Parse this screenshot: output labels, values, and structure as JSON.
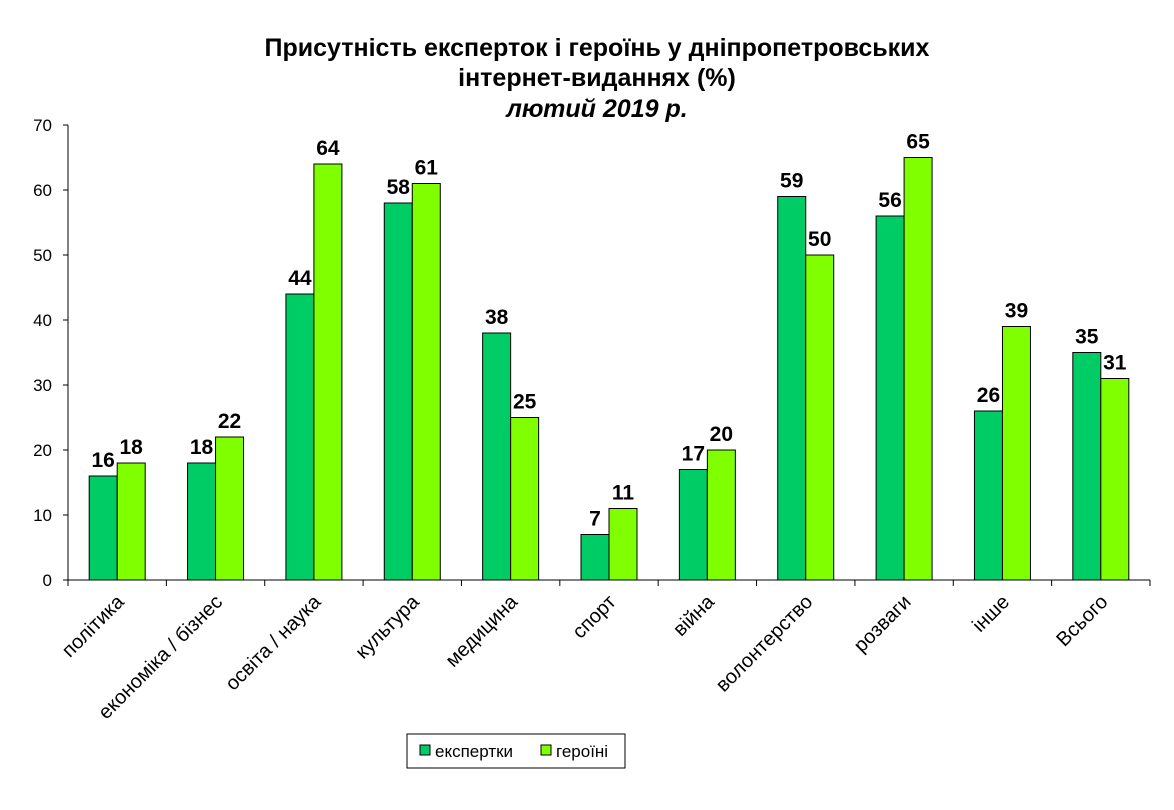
{
  "chart_data": {
    "type": "bar",
    "title": "Присутність eксперток і героїнь у дніпропетровських",
    "title_line2": "інтернет-виданнях (%)",
    "subtitle": "лютий 2019 р.",
    "xlabel": "",
    "ylabel": "",
    "ylim": [
      0,
      70
    ],
    "yticks": [
      "0",
      "10",
      "20",
      "30",
      "40",
      "50",
      "60",
      "70"
    ],
    "grid": false,
    "legend_position": "bottom",
    "categories": [
      "політика",
      "економіка / бізнес",
      "освіта / наука",
      "культура",
      "медицина",
      "спорт",
      "війна",
      "волонтерство",
      "розваги",
      "інше",
      "Всього"
    ],
    "series": [
      {
        "name": "експертки",
        "color": "#00CC66",
        "values": [
          16,
          18,
          44,
          58,
          38,
          7,
          17,
          59,
          56,
          26,
          35
        ]
      },
      {
        "name": "героїні",
        "color": "#80FF00",
        "values": [
          18,
          22,
          64,
          61,
          25,
          11,
          20,
          50,
          65,
          39,
          31
        ]
      }
    ]
  }
}
